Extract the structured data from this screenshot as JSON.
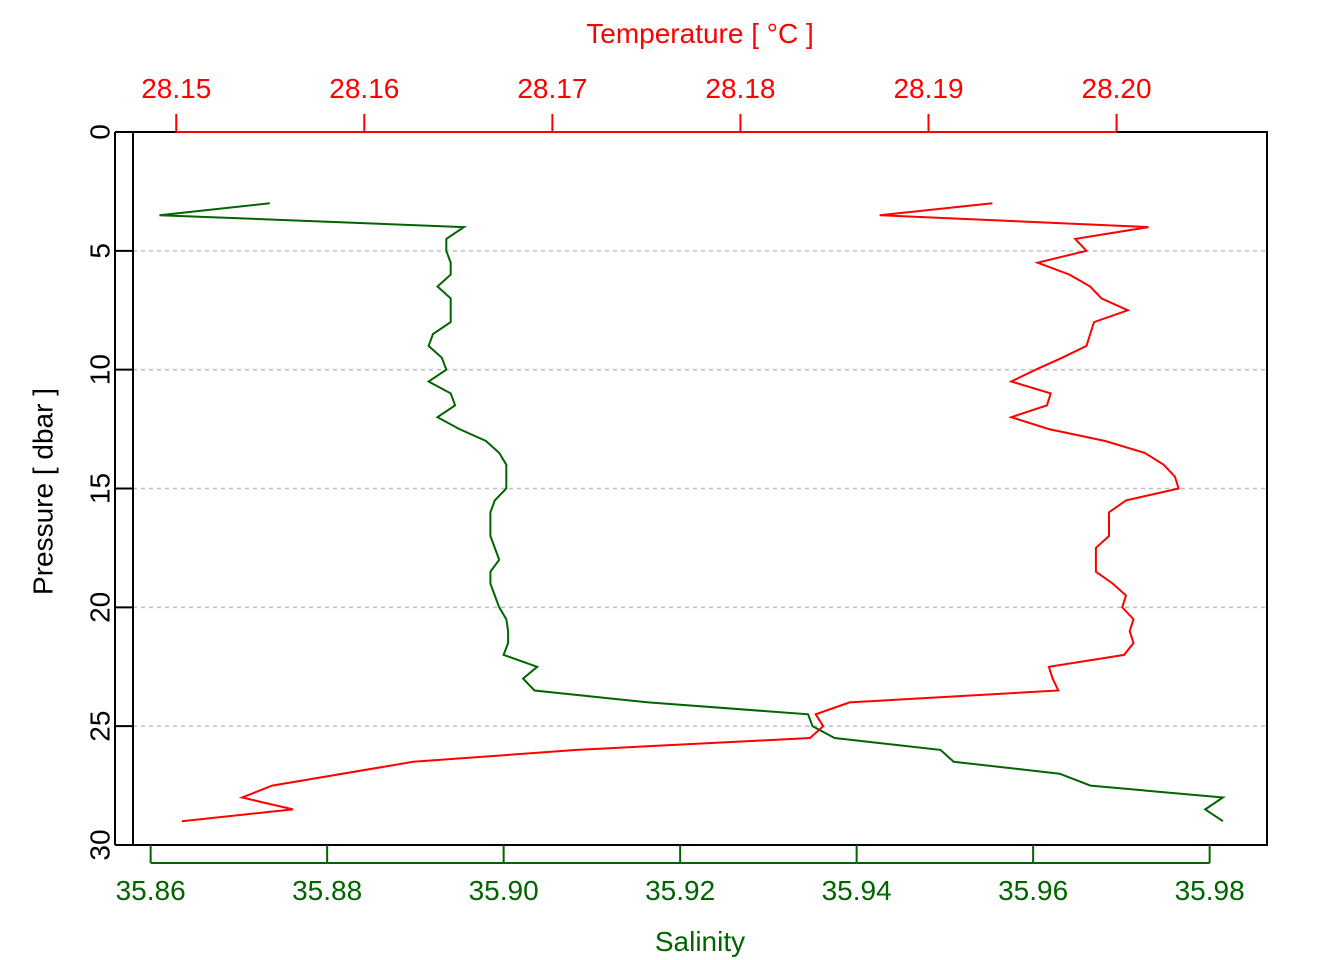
{
  "chart_data": {
    "type": "line",
    "grid": "horizontal dashed",
    "colors": {
      "salinity": "#006400",
      "temperature": "#ff0000",
      "frame": "#000000",
      "grid": "#bebebe"
    },
    "y_axis": {
      "label": "Pressure [ dbar ]",
      "range": [
        30,
        0
      ],
      "inverted": true,
      "ticks": [
        0,
        5,
        10,
        15,
        20,
        25,
        30
      ],
      "tick_labels": [
        "0",
        "5",
        "10",
        "15",
        "20",
        "25",
        "30"
      ]
    },
    "x_axis_bottom": {
      "label": "Salinity",
      "range": [
        35.858,
        35.9865
      ],
      "ticks": [
        35.86,
        35.88,
        35.9,
        35.92,
        35.94,
        35.96,
        35.98
      ],
      "tick_labels": [
        "35.86",
        "35.88",
        "35.90",
        "35.92",
        "35.94",
        "35.96",
        "35.98"
      ]
    },
    "x_axis_top": {
      "label": "Temperature [ °C ]",
      "range": [
        28.1477,
        28.208
      ],
      "ticks": [
        28.15,
        28.16,
        28.17,
        28.18,
        28.19,
        28.2
      ],
      "tick_labels": [
        "28.15",
        "28.16",
        "28.17",
        "28.18",
        "28.19",
        "28.20"
      ]
    },
    "series": [
      {
        "name": "Salinity",
        "axis": "bottom",
        "points": [
          [
            35.8735,
            3.0
          ],
          [
            35.861,
            3.5
          ],
          [
            35.8955,
            4.0
          ],
          [
            35.8935,
            4.5
          ],
          [
            35.8935,
            5.0
          ],
          [
            35.894,
            5.5
          ],
          [
            35.894,
            6.0
          ],
          [
            35.8925,
            6.5
          ],
          [
            35.894,
            7.0
          ],
          [
            35.894,
            8.0
          ],
          [
            35.892,
            8.5
          ],
          [
            35.8915,
            9.0
          ],
          [
            35.893,
            9.5
          ],
          [
            35.8935,
            10.0
          ],
          [
            35.8915,
            10.5
          ],
          [
            35.894,
            11.0
          ],
          [
            35.8945,
            11.5
          ],
          [
            35.8925,
            12.0
          ],
          [
            35.895,
            12.5
          ],
          [
            35.898,
            13.0
          ],
          [
            35.8995,
            13.5
          ],
          [
            35.9003,
            14.0
          ],
          [
            35.9003,
            15.0
          ],
          [
            35.899,
            15.5
          ],
          [
            35.8985,
            16.0
          ],
          [
            35.8985,
            17.0
          ],
          [
            35.899,
            17.5
          ],
          [
            35.8995,
            18.0
          ],
          [
            35.8985,
            18.5
          ],
          [
            35.8985,
            19.0
          ],
          [
            35.899,
            19.5
          ],
          [
            35.8995,
            20.0
          ],
          [
            35.9003,
            20.5
          ],
          [
            35.9005,
            21.0
          ],
          [
            35.9005,
            21.5
          ],
          [
            35.9,
            22.0
          ],
          [
            35.9038,
            22.5
          ],
          [
            35.9022,
            23.0
          ],
          [
            35.9035,
            23.5
          ],
          [
            35.9164,
            24.0
          ],
          [
            35.9345,
            24.5
          ],
          [
            35.935,
            25.0
          ],
          [
            35.9375,
            25.5
          ],
          [
            35.9495,
            26.0
          ],
          [
            35.951,
            26.5
          ],
          [
            35.963,
            27.0
          ],
          [
            35.9665,
            27.5
          ],
          [
            35.9815,
            28.0
          ],
          [
            35.9795,
            28.5
          ],
          [
            35.9815,
            29.0
          ]
        ]
      },
      {
        "name": "Temperature",
        "axis": "top",
        "points": [
          [
            28.1934,
            3.0
          ],
          [
            28.1874,
            3.5
          ],
          [
            28.2017,
            4.0
          ],
          [
            28.1978,
            4.5
          ],
          [
            28.1984,
            5.0
          ],
          [
            28.1958,
            5.5
          ],
          [
            28.1975,
            6.0
          ],
          [
            28.1986,
            6.5
          ],
          [
            28.1992,
            7.0
          ],
          [
            28.2006,
            7.5
          ],
          [
            28.1988,
            8.0
          ],
          [
            28.1986,
            8.5
          ],
          [
            28.1984,
            9.0
          ],
          [
            28.1971,
            9.5
          ],
          [
            28.1957,
            10.0
          ],
          [
            28.1944,
            10.5
          ],
          [
            28.1965,
            11.0
          ],
          [
            28.1963,
            11.5
          ],
          [
            28.1944,
            12.0
          ],
          [
            28.1964,
            12.5
          ],
          [
            28.1994,
            13.0
          ],
          [
            28.2015,
            13.5
          ],
          [
            28.2025,
            14.0
          ],
          [
            28.2031,
            14.5
          ],
          [
            28.2033,
            15.0
          ],
          [
            28.2005,
            15.5
          ],
          [
            28.1996,
            16.0
          ],
          [
            28.1996,
            17.0
          ],
          [
            28.1989,
            17.5
          ],
          [
            28.1989,
            18.5
          ],
          [
            28.1998,
            19.0
          ],
          [
            28.2005,
            19.5
          ],
          [
            28.2003,
            20.0
          ],
          [
            28.2009,
            20.5
          ],
          [
            28.2007,
            21.0
          ],
          [
            28.2009,
            21.5
          ],
          [
            28.2004,
            22.0
          ],
          [
            28.1964,
            22.5
          ],
          [
            28.1966,
            23.0
          ],
          [
            28.1969,
            23.5
          ],
          [
            28.1858,
            24.0
          ],
          [
            28.184,
            24.5
          ],
          [
            28.1844,
            25.0
          ],
          [
            28.1837,
            25.5
          ],
          [
            28.1713,
            26.0
          ],
          [
            28.1626,
            26.5
          ],
          [
            28.1551,
            27.5
          ],
          [
            28.1535,
            28.0
          ],
          [
            28.1562,
            28.5
          ],
          [
            28.1503,
            29.0
          ]
        ]
      }
    ]
  }
}
